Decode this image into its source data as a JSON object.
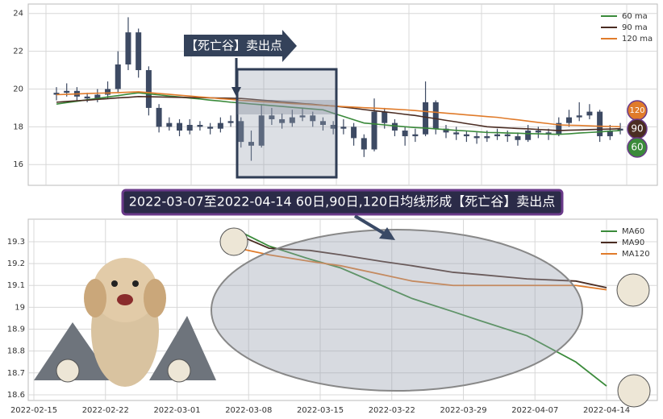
{
  "charts": [
    {
      "type": "candlestick",
      "title": "【死亡谷】卖出点",
      "open": [
        19.7,
        19.8,
        19.9,
        19.6,
        19.5,
        19.7,
        20.0,
        21.3,
        23.0,
        21.0,
        19.0,
        18.0,
        18.2,
        17.8,
        18.1,
        18.0,
        17.9,
        18.2,
        18.3,
        17.2,
        17.0,
        18.6,
        18.4,
        18.2,
        18.5,
        18.6,
        18.3,
        18.1,
        17.9,
        18.0,
        17.4,
        16.8,
        18.8,
        18.2,
        17.8,
        17.5,
        17.6,
        19.3,
        17.9,
        17.7,
        17.6,
        17.5,
        17.4,
        17.5,
        17.6,
        17.5,
        17.3,
        17.8,
        17.7,
        17.6,
        18.2,
        18.5,
        18.6,
        18.8,
        17.5,
        17.8
      ],
      "high": [
        20.1,
        20.3,
        20.1,
        19.8,
        20.0,
        20.4,
        22.0,
        23.8,
        23.2,
        21.2,
        19.2,
        18.5,
        18.4,
        18.4,
        18.3,
        18.2,
        18.5,
        18.6,
        18.5,
        17.8,
        19.2,
        19.0,
        18.7,
        18.9,
        19.0,
        18.8,
        18.5,
        18.3,
        18.4,
        18.2,
        17.6,
        19.5,
        19.0,
        18.4,
        18.0,
        17.9,
        20.4,
        19.4,
        18.1,
        18.0,
        17.8,
        17.7,
        17.8,
        17.9,
        17.8,
        17.7,
        18.1,
        18.0,
        17.9,
        18.5,
        18.9,
        19.3,
        19.2,
        18.9,
        18.1,
        18.2
      ],
      "low": [
        19.4,
        19.6,
        19.4,
        19.3,
        19.3,
        19.5,
        19.8,
        21.0,
        20.6,
        18.6,
        17.7,
        17.8,
        17.5,
        17.6,
        17.8,
        17.6,
        17.7,
        18.0,
        16.9,
        16.2,
        16.9,
        18.1,
        17.9,
        18.0,
        18.3,
        18.0,
        17.8,
        17.6,
        17.6,
        17.0,
        16.4,
        16.7,
        17.9,
        17.5,
        17.0,
        17.2,
        17.5,
        17.6,
        17.4,
        17.3,
        17.2,
        17.1,
        17.2,
        17.3,
        17.2,
        17.0,
        17.2,
        17.4,
        17.3,
        17.5,
        18.0,
        18.3,
        18.4,
        17.2,
        17.3,
        17.6
      ],
      "close": [
        19.8,
        19.9,
        19.6,
        19.5,
        19.7,
        20.0,
        21.3,
        23.0,
        21.0,
        19.0,
        18.0,
        18.2,
        17.8,
        18.1,
        18.0,
        17.9,
        18.2,
        18.3,
        17.2,
        17.0,
        18.6,
        18.4,
        18.2,
        18.5,
        18.6,
        18.3,
        18.1,
        17.9,
        18.0,
        17.4,
        16.8,
        18.8,
        18.2,
        17.8,
        17.5,
        17.6,
        19.3,
        17.9,
        17.7,
        17.6,
        17.5,
        17.4,
        17.5,
        17.6,
        17.5,
        17.3,
        17.8,
        17.7,
        17.6,
        18.2,
        18.5,
        18.6,
        18.8,
        17.5,
        17.8,
        17.9
      ],
      "color": "#3d4a63",
      "series": [
        {
          "name": "60 ma",
          "color": "#3a8a3a",
          "values": [
            19.2,
            19.28,
            19.35,
            19.43,
            19.5,
            19.58,
            19.65,
            19.73,
            19.8,
            19.74,
            19.69,
            19.63,
            19.58,
            19.52,
            19.47,
            19.41,
            19.36,
            19.3,
            19.26,
            19.21,
            19.17,
            19.12,
            19.08,
            19.03,
            18.99,
            18.94,
            18.9,
            18.72,
            18.55,
            18.37,
            18.2,
            18.15,
            18.1,
            18.05,
            18.0,
            17.96,
            17.93,
            17.89,
            17.85,
            17.81,
            17.78,
            17.74,
            17.7,
            17.69,
            17.67,
            17.66,
            17.64,
            17.63,
            17.61,
            17.6,
            17.63,
            17.67,
            17.7,
            17.73,
            17.77,
            17.8
          ]
        },
        {
          "name": "90 ma",
          "color": "#4a2c22",
          "values": [
            19.3,
            19.34,
            19.38,
            19.41,
            19.45,
            19.49,
            19.53,
            19.56,
            19.6,
            19.59,
            19.58,
            19.57,
            19.56,
            19.55,
            19.54,
            19.53,
            19.52,
            19.51,
            19.5,
            19.46,
            19.41,
            19.37,
            19.32,
            19.28,
            19.23,
            19.19,
            19.14,
            19.1,
            19.04,
            18.98,
            18.91,
            18.85,
            18.79,
            18.73,
            18.66,
            18.6,
            18.51,
            18.43,
            18.34,
            18.26,
            18.17,
            18.09,
            18.0,
            17.97,
            17.94,
            17.91,
            17.89,
            17.86,
            17.83,
            17.8,
            17.82,
            17.83,
            17.85,
            17.87,
            17.88,
            17.9
          ]
        },
        {
          "name": "120 ma",
          "color": "#e07b2a",
          "values": [
            19.7,
            19.72,
            19.74,
            19.76,
            19.78,
            19.79,
            19.81,
            19.83,
            19.85,
            19.81,
            19.76,
            19.72,
            19.67,
            19.63,
            19.58,
            19.54,
            19.49,
            19.45,
            19.4,
            19.37,
            19.33,
            19.3,
            19.27,
            19.23,
            19.2,
            19.17,
            19.13,
            19.1,
            19.07,
            19.04,
            19.01,
            18.99,
            18.96,
            18.93,
            18.9,
            18.86,
            18.81,
            18.77,
            18.72,
            18.68,
            18.63,
            18.59,
            18.54,
            18.5,
            18.43,
            18.37,
            18.3,
            18.23,
            18.17,
            18.1,
            18.08,
            18.07,
            18.05,
            18.03,
            18.02,
            18.0
          ]
        }
      ],
      "badges": [
        120,
        90,
        60
      ],
      "ylim": [
        14.9,
        24.5
      ],
      "yticks": [
        16,
        18,
        20,
        22,
        24
      ],
      "grid": true
    },
    {
      "type": "line",
      "title": "2022-03-07至2022-04-14 60日,90日,120日均线形成【死亡谷】卖出点",
      "x": [
        "2022-03-07",
        "2022-03-10",
        "2022-03-14",
        "2022-03-17",
        "2022-03-21",
        "2022-03-24",
        "2022-03-28",
        "2022-03-31",
        "2022-04-06",
        "2022-04-11",
        "2022-04-14"
      ],
      "series": [
        {
          "name": "MA60",
          "color": "#3a8a3a",
          "values": [
            19.35,
            19.28,
            19.22,
            19.18,
            19.1,
            19.04,
            18.98,
            18.94,
            18.87,
            18.75,
            18.64
          ]
        },
        {
          "name": "MA90",
          "color": "#4a2c22",
          "values": [
            19.33,
            19.27,
            19.26,
            19.24,
            19.21,
            19.19,
            19.16,
            19.15,
            19.13,
            19.12,
            19.09
          ]
        },
        {
          "name": "MA120",
          "color": "#e07b2a",
          "values": [
            19.27,
            19.24,
            19.21,
            19.19,
            19.15,
            19.12,
            19.1,
            19.1,
            19.1,
            19.1,
            19.08
          ]
        }
      ],
      "xticks": [
        "2022-02-15",
        "2022-02-22",
        "2022-03-01",
        "2022-03-08",
        "2022-03-15",
        "2022-03-22",
        "2022-03-29",
        "2022-04-07",
        "2022-04-14"
      ],
      "ylim": [
        18.574,
        19.403
      ],
      "yticks": [
        18.6,
        18.7,
        18.8,
        18.9,
        19.0,
        19.1,
        19.2,
        19.3
      ],
      "grid": true
    }
  ]
}
